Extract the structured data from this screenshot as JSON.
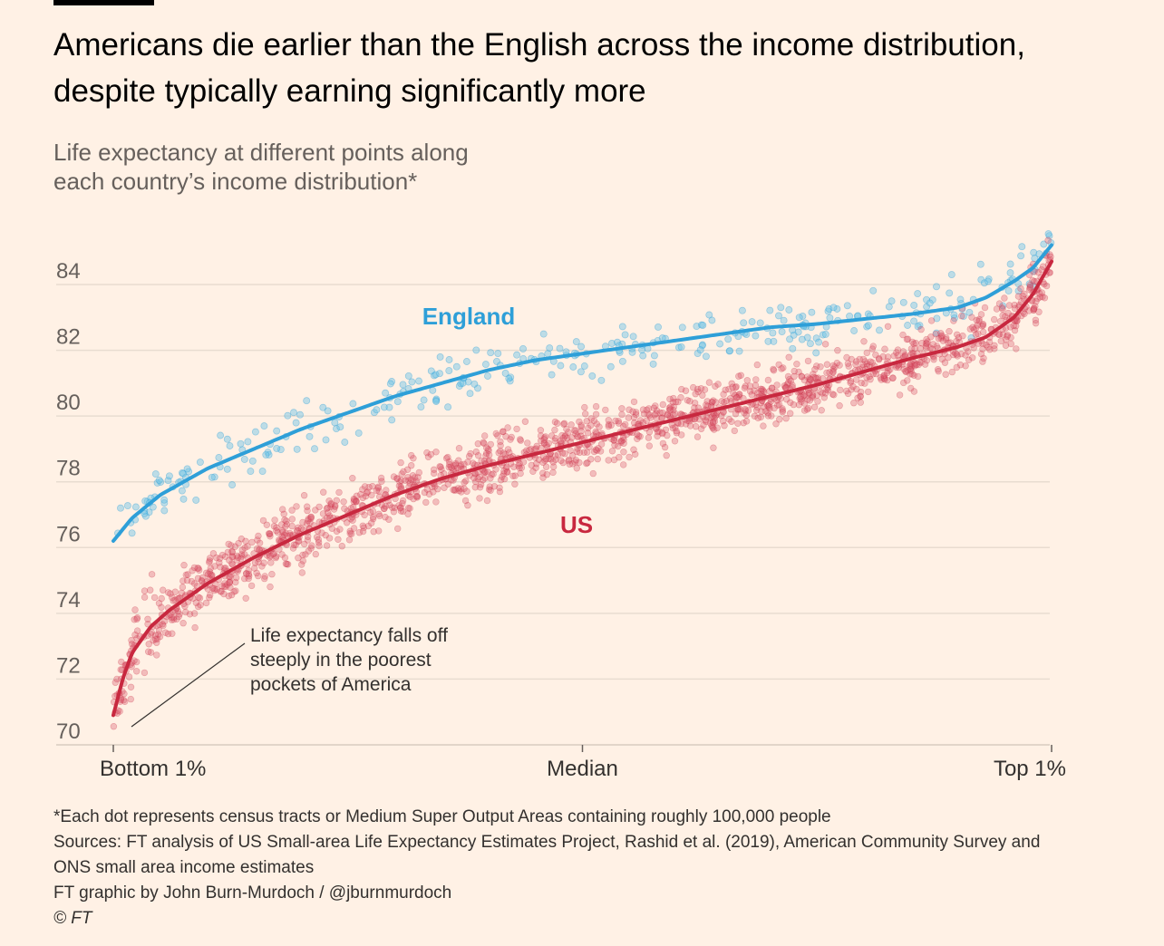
{
  "header": {
    "title_line1": "Americans die earlier than the English across the income distribution,",
    "title_line2": "despite typically earning significantly more",
    "subtitle_line1": "Life expectancy at different points along",
    "subtitle_line2": "each country’s income distribution*"
  },
  "colors": {
    "background": "#FFF1E5",
    "england": "#2E9FD8",
    "england_dots": "#6CC4E6",
    "us": "#C8283F",
    "us_dots": "#D9596E",
    "grid": "#E8DCD0"
  },
  "chart_data": {
    "type": "scatter",
    "title": "",
    "xlabel": "",
    "ylabel": "",
    "ylim": [
      70,
      86
    ],
    "yticks": [
      70,
      72,
      74,
      76,
      78,
      80,
      82,
      84
    ],
    "xlim": [
      0,
      100
    ],
    "xtick_labels": [
      "Bottom 1%",
      "Median",
      "Top 1%"
    ],
    "grid": true,
    "annotation": {
      "line1": "Life expectancy falls off",
      "line2": "steeply in the poorest",
      "line3": "pockets of America"
    },
    "series": [
      {
        "name": "England",
        "trend": [
          [
            0,
            76.2
          ],
          [
            2,
            76.9
          ],
          [
            5,
            77.6
          ],
          [
            10,
            78.4
          ],
          [
            15,
            79.0
          ],
          [
            20,
            79.6
          ],
          [
            25,
            80.1
          ],
          [
            30,
            80.6
          ],
          [
            35,
            81.0
          ],
          [
            40,
            81.4
          ],
          [
            45,
            81.7
          ],
          [
            50,
            81.9
          ],
          [
            55,
            82.1
          ],
          [
            60,
            82.3
          ],
          [
            65,
            82.5
          ],
          [
            70,
            82.7
          ],
          [
            75,
            82.8
          ],
          [
            80,
            82.95
          ],
          [
            85,
            83.1
          ],
          [
            90,
            83.3
          ],
          [
            93,
            83.6
          ],
          [
            96,
            84.1
          ],
          [
            98,
            84.5
          ],
          [
            100,
            85.2
          ]
        ],
        "point_count": 330
      },
      {
        "name": "US",
        "trend": [
          [
            0,
            70.9
          ],
          [
            1,
            72.0
          ],
          [
            2,
            72.8
          ],
          [
            4,
            73.6
          ],
          [
            6,
            74.1
          ],
          [
            10,
            74.9
          ],
          [
            15,
            75.7
          ],
          [
            20,
            76.4
          ],
          [
            25,
            77.0
          ],
          [
            30,
            77.6
          ],
          [
            35,
            78.1
          ],
          [
            40,
            78.5
          ],
          [
            45,
            78.85
          ],
          [
            50,
            79.2
          ],
          [
            55,
            79.55
          ],
          [
            60,
            79.9
          ],
          [
            65,
            80.25
          ],
          [
            70,
            80.6
          ],
          [
            75,
            80.95
          ],
          [
            80,
            81.35
          ],
          [
            85,
            81.75
          ],
          [
            90,
            82.1
          ],
          [
            93,
            82.4
          ],
          [
            96,
            83.0
          ],
          [
            98,
            83.7
          ],
          [
            100,
            84.7
          ]
        ],
        "point_count": 1700
      }
    ]
  },
  "footer": {
    "note": "*Each dot represents census tracts or Medium Super Output Areas containing roughly 100,000 people",
    "sources_line1": "Sources: FT analysis of US Small-area Life Expectancy Estimates Project, Rashid et al. (2019), American Community Survey and",
    "sources_line2": "ONS small area income estimates",
    "credit": "FT graphic by John Burn-Murdoch / @jburnmurdoch",
    "copyright": "© FT"
  }
}
